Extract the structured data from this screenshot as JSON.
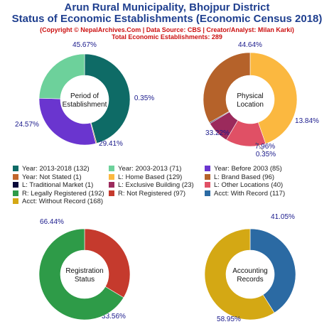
{
  "header": {
    "title_line1": "Arun Rural Municipality, Bhojpur District",
    "title_line2": "Status of Economic Establishments (Economic Census 2018)",
    "credit": "(Copyright © NepalArchives.Com | Data Source: CBS | Creator/Analyst: Milan Karki)",
    "total": "Total Economic Establishments: 289"
  },
  "chart_data": [
    {
      "type": "pie",
      "center_label": [
        "Period of",
        "Establishment"
      ],
      "start_angle_deg": 0,
      "slices": [
        {
          "name": "Year: 2013-2018",
          "value": 132,
          "pct_label": "45.67%",
          "color": "#0e6b66"
        },
        {
          "name": "Year: Not Stated",
          "value": 1,
          "pct_label": "0.35%",
          "color": "#c2662c"
        },
        {
          "name": "Year: Before 2003",
          "value": 85,
          "pct_label": "29.41%",
          "color": "#6a35cf"
        },
        {
          "name": "Year: 2003-2013",
          "value": 71,
          "pct_label": "24.57%",
          "color": "#6dd19b"
        }
      ]
    },
    {
      "type": "pie",
      "center_label": [
        "Physical",
        "Location"
      ],
      "start_angle_deg": 0,
      "slices": [
        {
          "name": "L: Home Based",
          "value": 129,
          "pct_label": "44.64%",
          "color": "#fbb840"
        },
        {
          "name": "L: Other Locations",
          "value": 40,
          "pct_label": "13.84%",
          "color": "#e05065"
        },
        {
          "name": "L: Exclusive Building",
          "value": 23,
          "pct_label": "7.96%",
          "color": "#9b2a5c"
        },
        {
          "name": "L: Traditional Market",
          "value": 1,
          "pct_label": "0.35%",
          "color": "#0a0a3a"
        },
        {
          "name": "L: Brand Based",
          "value": 96,
          "pct_label": "33.22%",
          "color": "#b5622a"
        }
      ]
    },
    {
      "type": "pie",
      "center_label": [
        "Registration",
        "Status"
      ],
      "start_angle_deg": 0,
      "slices": [
        {
          "name": "R: Not Registered",
          "value": 97,
          "pct_label": "33.56%",
          "color": "#c53a2d"
        },
        {
          "name": "R: Legally Registered",
          "value": 192,
          "pct_label": "66.44%",
          "color": "#2e9b48"
        }
      ]
    },
    {
      "type": "pie",
      "center_label": [
        "Accounting",
        "Records"
      ],
      "start_angle_deg": 0,
      "slices": [
        {
          "name": "Acct: With Record",
          "value": 117,
          "pct_label": "41.05%",
          "color": "#2b6aa3"
        },
        {
          "name": "Acct: Without Record",
          "value": 168,
          "pct_label": "58.95%",
          "color": "#d4a814"
        }
      ]
    }
  ],
  "legend": [
    {
      "label": "Year: 2013-2018 (132)",
      "color": "#0e6b66"
    },
    {
      "label": "Year: 2003-2013 (71)",
      "color": "#6dd19b"
    },
    {
      "label": "Year: Before 2003 (85)",
      "color": "#6a35cf"
    },
    {
      "label": "Year: Not Stated (1)",
      "color": "#c2662c"
    },
    {
      "label": "L: Home Based (129)",
      "color": "#fbb840"
    },
    {
      "label": "L: Brand Based (96)",
      "color": "#b5622a"
    },
    {
      "label": "L: Traditional Market (1)",
      "color": "#0a0a3a"
    },
    {
      "label": "L: Exclusive Building (23)",
      "color": "#9b2a5c"
    },
    {
      "label": "L: Other Locations (40)",
      "color": "#e05065"
    },
    {
      "label": "R: Legally Registered (192)",
      "color": "#2e9b48"
    },
    {
      "label": "R: Not Registered (97)",
      "color": "#c53a2d"
    },
    {
      "label": "Acct: With Record (117)",
      "color": "#2b6aa3"
    },
    {
      "label": "Acct: Without Record (168)",
      "color": "#d4a814"
    }
  ]
}
